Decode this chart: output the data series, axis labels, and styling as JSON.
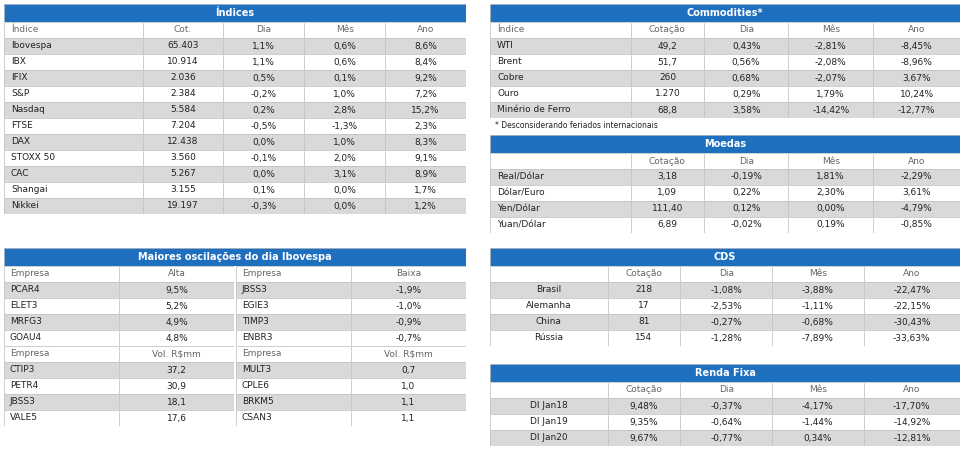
{
  "header_color": "#1F6FBF",
  "header_text_color": "#FFFFFF",
  "col_header_bg": "#FFFFFF",
  "col_header_text": "#666666",
  "row_odd_color": "#D9D9D9",
  "row_even_color": "#FFFFFF",
  "border_color": "#AAAAAA",
  "text_color": "#222222",
  "indices_title": "Índices",
  "indices_cols": [
    "Índice",
    "Cot.",
    "Dia",
    "Mês",
    "Ano"
  ],
  "indices_data": [
    [
      "Ibovespa",
      "65.403",
      "1,1%",
      "0,6%",
      "8,6%"
    ],
    [
      "IBX",
      "10.914",
      "1,1%",
      "0,6%",
      "8,4%"
    ],
    [
      "IFIX",
      "2.036",
      "0,5%",
      "0,1%",
      "9,2%"
    ],
    [
      "S&P",
      "2.384",
      "-0,2%",
      "1,0%",
      "7,2%"
    ],
    [
      "Nasdaq",
      "5.584",
      "0,2%",
      "2,8%",
      "15,2%"
    ],
    [
      "FTSE",
      "7.204",
      "-0,5%",
      "-1,3%",
      "2,3%"
    ],
    [
      "DAX",
      "12.438",
      "0,0%",
      "1,0%",
      "8,3%"
    ],
    [
      "STOXX 50",
      "3.560",
      "-0,1%",
      "2,0%",
      "9,1%"
    ],
    [
      "CAC",
      "5.267",
      "0,0%",
      "3,1%",
      "8,9%"
    ],
    [
      "Shangai",
      "3.155",
      "0,1%",
      "0,0%",
      "1,7%"
    ],
    [
      "Nikkei",
      "19.197",
      "-0,3%",
      "0,0%",
      "1,2%"
    ]
  ],
  "commodities_title": "Commodities*",
  "commodities_cols": [
    "Índice",
    "Cotação",
    "Dia",
    "Mês",
    "Ano"
  ],
  "commodities_data": [
    [
      "WTI",
      "49,2",
      "0,43%",
      "-2,81%",
      "-8,45%"
    ],
    [
      "Brent",
      "51,7",
      "0,56%",
      "-2,08%",
      "-8,96%"
    ],
    [
      "Cobre",
      "260",
      "0,68%",
      "-2,07%",
      "3,67%"
    ],
    [
      "Ouro",
      "1.270",
      "0,29%",
      "1,79%",
      "10,24%"
    ],
    [
      "Minério de Ferro",
      "68,8",
      "3,58%",
      "-14,42%",
      "-12,77%"
    ]
  ],
  "commodities_note": "* Desconsiderando feriados internacionais",
  "moedas_title": "Moedas",
  "moedas_cols": [
    "",
    "Cotação",
    "Dia",
    "Mês",
    "Ano"
  ],
  "moedas_data": [
    [
      "Real/Dólar",
      "3,18",
      "-0,19%",
      "1,81%",
      "-2,29%"
    ],
    [
      "Dólar/Euro",
      "1,09",
      "0,22%",
      "2,30%",
      "3,61%"
    ],
    [
      "Yen/Dólar",
      "111,40",
      "0,12%",
      "0,00%",
      "-4,79%"
    ],
    [
      "Yuan/Dólar",
      "6,89",
      "-0,02%",
      "0,19%",
      "-0,85%"
    ]
  ],
  "oscilacoes_title": "Maiores oscilações do dia Ibovespa",
  "oscilacoes_alta_cols": [
    "Empresa",
    "Alta"
  ],
  "oscilacoes_alta_data": [
    [
      "PCAR4",
      "9,5%"
    ],
    [
      "ELET3",
      "5,2%"
    ],
    [
      "MRFG3",
      "4,9%"
    ],
    [
      "GOAU4",
      "4,8%"
    ]
  ],
  "oscilacoes_baixa_cols": [
    "Empresa",
    "Baixa"
  ],
  "oscilacoes_baixa_data": [
    [
      "JBSS3",
      "-1,9%"
    ],
    [
      "EGIE3",
      "-1,0%"
    ],
    [
      "TIMP3",
      "-0,9%"
    ],
    [
      "ENBR3",
      "-0,7%"
    ]
  ],
  "oscilacoes_vol_alta_cols": [
    "Empresa",
    "Vol. R$mm"
  ],
  "oscilacoes_vol_alta_data": [
    [
      "CTIP3",
      "37,2"
    ],
    [
      "PETR4",
      "30,9"
    ],
    [
      "JBSS3",
      "18,1"
    ],
    [
      "VALE5",
      "17,6"
    ]
  ],
  "oscilacoes_vol_baixa_cols": [
    "Empresa",
    "Vol. R$mm"
  ],
  "oscilacoes_vol_baixa_data": [
    [
      "MULT3",
      "0,7"
    ],
    [
      "CPLE6",
      "1,0"
    ],
    [
      "BRKM5",
      "1,1"
    ],
    [
      "CSAN3",
      "1,1"
    ]
  ],
  "cds_title": "CDS",
  "cds_cols": [
    "",
    "Cotação",
    "Dia",
    "Mês",
    "Ano"
  ],
  "cds_data": [
    [
      "Brasil",
      "218",
      "-1,08%",
      "-3,88%",
      "-22,47%"
    ],
    [
      "Alemanha",
      "17",
      "-2,53%",
      "-1,11%",
      "-22,15%"
    ],
    [
      "China",
      "81",
      "-0,27%",
      "-0,68%",
      "-30,43%"
    ],
    [
      "Rússia",
      "154",
      "-1,28%",
      "-7,89%",
      "-33,63%"
    ]
  ],
  "rendafixa_title": "Renda Fixa",
  "rendafixa_cols": [
    "",
    "Cotação",
    "Dia",
    "Mês",
    "Ano"
  ],
  "rendafixa_data": [
    [
      "DI Jan18",
      "9,48%",
      "-0,37%",
      "-4,17%",
      "-17,70%"
    ],
    [
      "DI Jan19",
      "9,35%",
      "-0,64%",
      "-1,44%",
      "-14,92%"
    ],
    [
      "DI Jan20",
      "9,67%",
      "-0,77%",
      "0,34%",
      "-12,81%"
    ]
  ]
}
